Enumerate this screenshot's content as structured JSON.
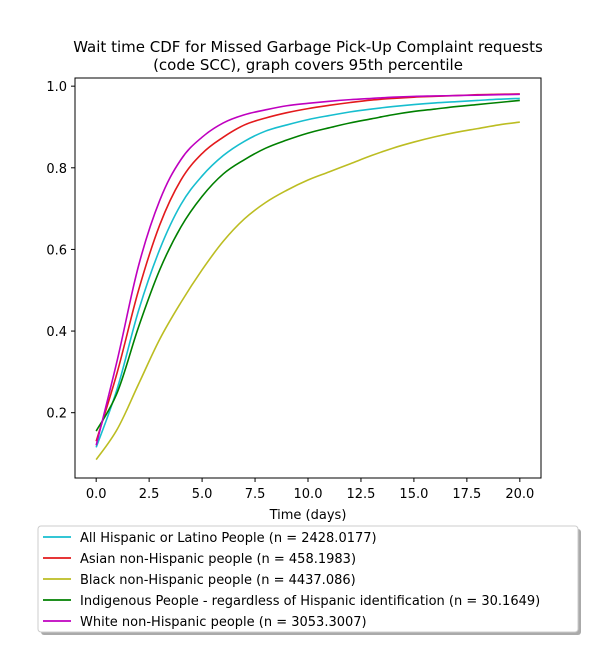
{
  "chart_data": {
    "type": "line",
    "title": "Wait time CDF for Missed Garbage Pick-Up Complaint  requests",
    "subtitle": "(code SCC), graph covers 95th percentile",
    "xlabel": "Time (days)",
    "ylabel": "",
    "xlim": [
      -1,
      21
    ],
    "ylim": [
      0.04,
      1.02
    ],
    "xticks": [
      0.0,
      2.5,
      5.0,
      7.5,
      10.0,
      12.5,
      15.0,
      17.5,
      20.0
    ],
    "xtick_labels": [
      "0.0",
      "2.5",
      "5.0",
      "7.5",
      "10.0",
      "12.5",
      "15.0",
      "17.5",
      "20.0"
    ],
    "yticks": [
      0.2,
      0.4,
      0.6,
      0.8,
      1.0
    ],
    "ytick_labels": [
      "0.2",
      "0.4",
      "0.6",
      "0.8",
      "1.0"
    ],
    "grid": false,
    "legend_position": "below",
    "x": [
      0,
      1,
      2,
      3,
      4,
      5,
      6,
      7,
      8,
      9,
      10,
      11,
      12,
      13,
      14,
      15,
      16,
      17,
      18,
      19,
      20
    ],
    "series": [
      {
        "name": "All Hispanic or Latino People (n = 2428.0177)",
        "color": "#17becf",
        "values": [
          0.115,
          0.26,
          0.45,
          0.6,
          0.71,
          0.78,
          0.83,
          0.865,
          0.89,
          0.905,
          0.918,
          0.928,
          0.937,
          0.944,
          0.95,
          0.955,
          0.959,
          0.962,
          0.965,
          0.968,
          0.97
        ]
      },
      {
        "name": "Asian non-Hispanic people (n = 458.1983)",
        "color": "#e31a1c",
        "values": [
          0.13,
          0.3,
          0.5,
          0.66,
          0.77,
          0.835,
          0.875,
          0.905,
          0.922,
          0.935,
          0.945,
          0.953,
          0.96,
          0.966,
          0.97,
          0.973,
          0.975,
          0.977,
          0.979,
          0.98,
          0.981
        ]
      },
      {
        "name": "Black non-Hispanic people (n = 4437.086)",
        "color": "#bcbd22",
        "values": [
          0.085,
          0.16,
          0.27,
          0.38,
          0.47,
          0.55,
          0.62,
          0.675,
          0.715,
          0.745,
          0.77,
          0.79,
          0.81,
          0.83,
          0.848,
          0.863,
          0.876,
          0.887,
          0.896,
          0.905,
          0.912
        ]
      },
      {
        "name": "Indigenous People - regardless of Hispanic identification (n = 30.1649)",
        "color": "#008000",
        "values": [
          0.155,
          0.25,
          0.41,
          0.55,
          0.655,
          0.73,
          0.785,
          0.82,
          0.848,
          0.868,
          0.885,
          0.898,
          0.91,
          0.92,
          0.93,
          0.938,
          0.944,
          0.95,
          0.955,
          0.96,
          0.965
        ]
      },
      {
        "name": "White non-Hispanic people (n = 3053.3007)",
        "color": "#bf00bf",
        "values": [
          0.12,
          0.33,
          0.56,
          0.72,
          0.82,
          0.875,
          0.91,
          0.93,
          0.942,
          0.952,
          0.958,
          0.963,
          0.967,
          0.97,
          0.973,
          0.975,
          0.976,
          0.977,
          0.978,
          0.979,
          0.98
        ]
      }
    ]
  }
}
